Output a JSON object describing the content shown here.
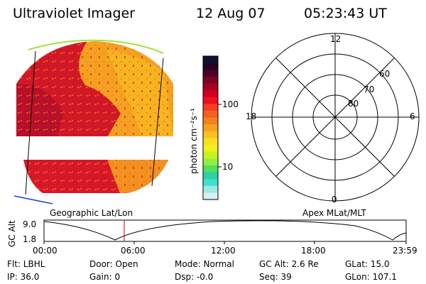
{
  "header": {
    "title": "Ultraviolet Imager",
    "date": "12 Aug 07",
    "time": "05:23:43 UT"
  },
  "colorbar": {
    "label": "photon cm⁻²s⁻¹",
    "ticks": [
      "100",
      "10"
    ],
    "colors": [
      "#101030",
      "#2a0020",
      "#4a0028",
      "#7a0025",
      "#a80020",
      "#d00020",
      "#ee1020",
      "#f24020",
      "#f46020",
      "#f68020",
      "#f8a020",
      "#fac020",
      "#fce020",
      "#f0f020",
      "#c8f020",
      "#90f040",
      "#50e060",
      "#30d0a0",
      "#40e0d0",
      "#a0e8e8",
      "#d8f0f0"
    ]
  },
  "image_panel": {
    "label": "Geographic Lat/Lon"
  },
  "polar_plot": {
    "label": "Apex MLat/MLT",
    "mlt_labels": [
      "12",
      "18",
      "6",
      "0"
    ],
    "lat_labels": [
      "60",
      "70",
      "80"
    ]
  },
  "altitude_plot": {
    "axis_label": "GC Alt",
    "y_ticks": [
      "9.0",
      "1.8"
    ],
    "x_ticks": [
      "00:00",
      "06:00",
      "12:00",
      "18:00",
      "23:59"
    ],
    "marker_color": "#c00000"
  },
  "info": {
    "filter": "Flt: LBHL",
    "ip": "IP: 36.0",
    "door": "Door: Open",
    "gain": "Gain:  0",
    "mode": "Mode: Normal",
    "dsp": "Dsp:   -0.0",
    "gc_alt": "GC Alt: 2.6 Re",
    "seq": "Seq: 39",
    "glat": "GLat:  15.0",
    "glon": "GLon: 107.1"
  }
}
